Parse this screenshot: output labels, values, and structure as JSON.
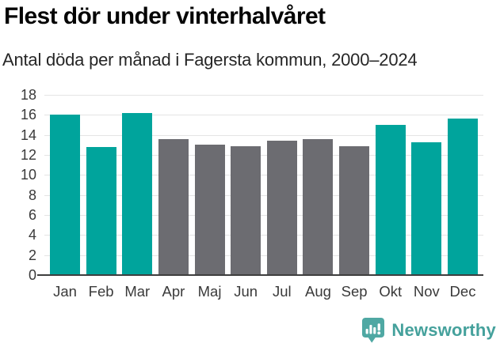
{
  "header": {
    "title": "Flest dör under vinterhalvåret",
    "subtitle": "Antal döda per månad i Fagersta kommun, 2000–2024"
  },
  "chart_data": {
    "type": "bar",
    "title": "Flest dör under vinterhalvåret",
    "subtitle": "Antal döda per månad i Fagersta kommun, 2000–2024",
    "categories": [
      "Jan",
      "Feb",
      "Mar",
      "Apr",
      "Maj",
      "Jun",
      "Jul",
      "Aug",
      "Sep",
      "Okt",
      "Nov",
      "Dec"
    ],
    "values": [
      16.0,
      12.8,
      16.2,
      13.6,
      13.0,
      12.9,
      13.4,
      13.6,
      12.9,
      15.0,
      13.3,
      15.6
    ],
    "bar_styles": [
      "highlight",
      "highlight",
      "highlight",
      "neutral",
      "neutral",
      "neutral",
      "neutral",
      "neutral",
      "neutral",
      "highlight",
      "highlight",
      "highlight"
    ],
    "xlabel": "",
    "ylabel": "",
    "ylim": [
      0,
      18
    ],
    "yticks": [
      0,
      2,
      4,
      6,
      8,
      10,
      12,
      14,
      16,
      18
    ],
    "grid": true,
    "legend": "none",
    "colors": {
      "highlight": "#00a49c",
      "neutral": "#6c6c71",
      "gridline": "#e4e4e4",
      "axis_line": "#3e3e3e",
      "tick_label": "#3a3a3a"
    }
  },
  "branding": {
    "logo_text": "Newsworthy",
    "logo_text_color": "#45a19c",
    "logo_icon": "newsworthy-speech-bubble-barchart-icon",
    "logo_icon_color": "#4fa8a3"
  }
}
